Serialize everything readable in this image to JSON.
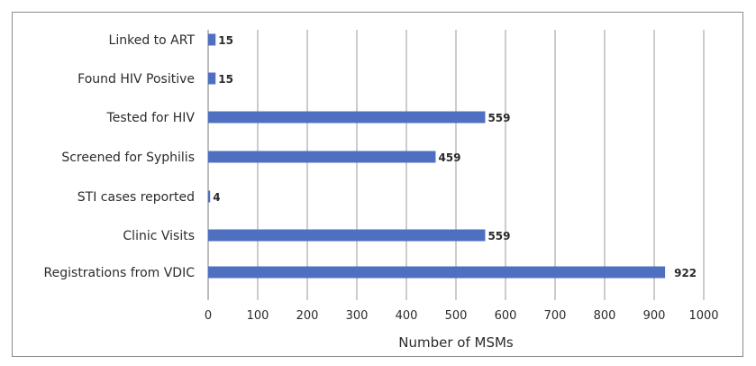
{
  "chart_data": {
    "type": "bar",
    "orientation": "horizontal",
    "categories": [
      "Linked to ART",
      "Found HIV Positive",
      "Tested for HIV",
      "Screened for Syphilis",
      "STI cases reported",
      "Clinic Visits",
      "Registrations from VDIC"
    ],
    "values": [
      15,
      15,
      559,
      459,
      4,
      559,
      922
    ],
    "data_labels": [
      "15",
      "15",
      "559",
      "459",
      "4",
      "559",
      "922"
    ],
    "xlabel": "Number of MSMs",
    "ylabel": "",
    "xlim": [
      0,
      1000
    ],
    "x_ticks": [
      0,
      100,
      200,
      300,
      400,
      500,
      600,
      700,
      800,
      900,
      1000
    ],
    "grid": "vertical",
    "legend": "none",
    "bar_color": "#4F6FC0",
    "grid_color": "#9a9a9a"
  }
}
